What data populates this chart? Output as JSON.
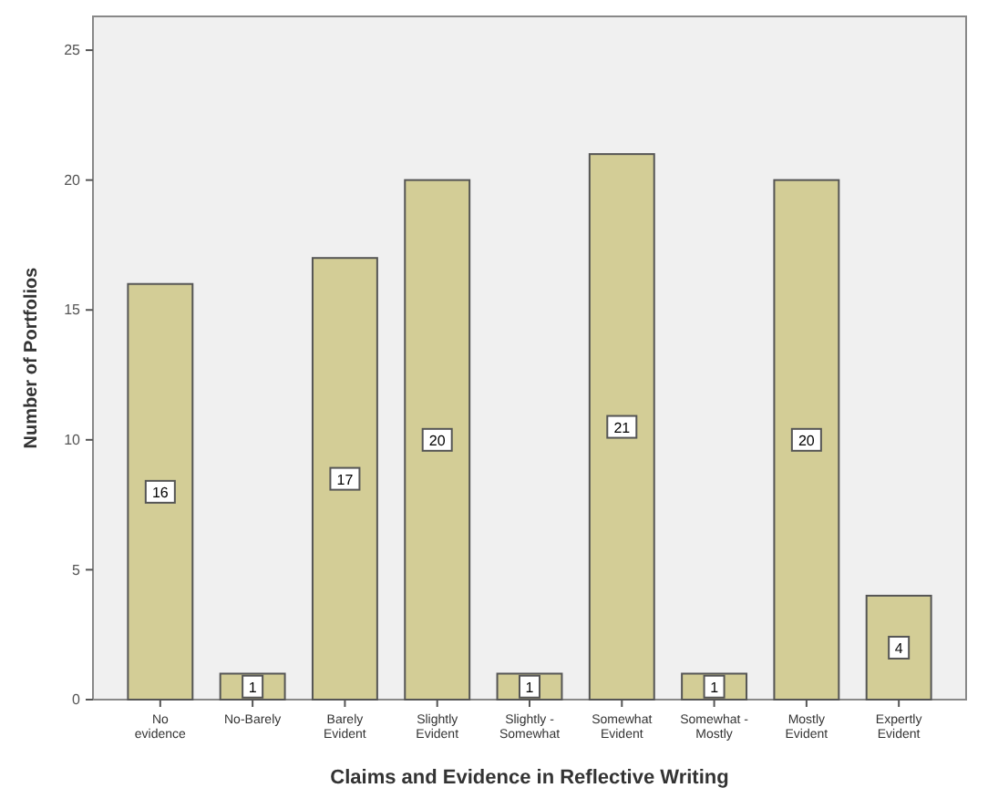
{
  "chart_data": {
    "type": "bar",
    "xlabel": "Claims and Evidence in Reflective Writing",
    "ylabel": "Number of Portfolios",
    "categories": [
      "No evidence",
      "No-Barely",
      "Barely Evident",
      "Slightly Evident",
      "Slightly - Somewhat",
      "Somewhat Evident",
      "Somewhat - Mostly",
      "Mostly Evident",
      "Expertly Evident"
    ],
    "values": [
      16,
      1,
      17,
      20,
      1,
      21,
      1,
      20,
      4
    ],
    "color": "#d3cd96",
    "data_labels": true,
    "ylim": [
      0,
      26.3
    ],
    "yticks": [
      0,
      5,
      10,
      15,
      20,
      25
    ]
  }
}
